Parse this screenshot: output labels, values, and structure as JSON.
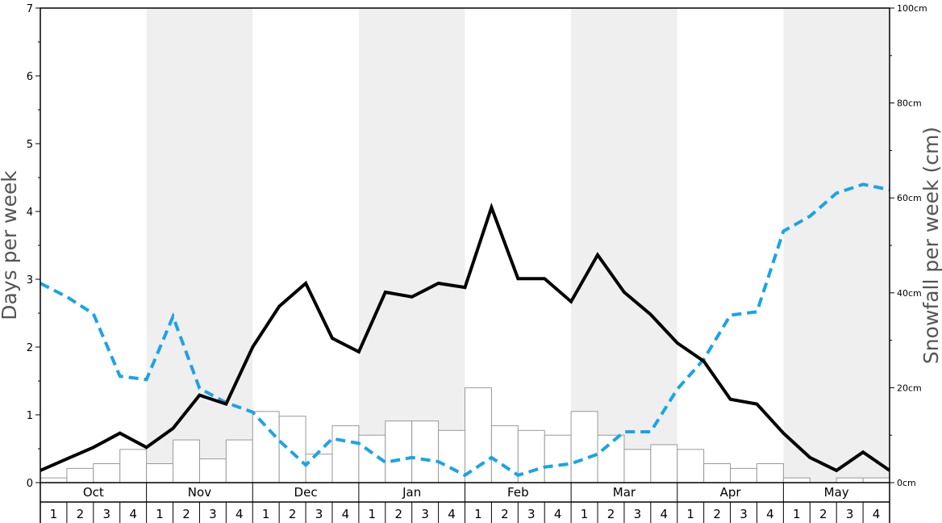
{
  "chart_data": {
    "type": "bar",
    "ylabel": "Days per week",
    "y2label": "Snowfall per week (cm)",
    "ylim": [
      0,
      7
    ],
    "y2lim": [
      0,
      100
    ],
    "y_ticks": [
      "0",
      "1",
      "2",
      "3",
      "4",
      "5",
      "6",
      "7"
    ],
    "y2_ticks": [
      "0cm",
      "20cm",
      "40cm",
      "60cm",
      "80cm",
      "100cm"
    ],
    "months": [
      "Oct",
      "Nov",
      "Dec",
      "Jan",
      "Feb",
      "Mar",
      "Apr",
      "May"
    ],
    "weeks": [
      "1",
      "2",
      "3",
      "4"
    ],
    "shaded_months": [
      "Nov",
      "Jan",
      "Mar",
      "May"
    ],
    "colors": {
      "shade": "#efefef",
      "bar_fill": "#ffffff",
      "bar_stroke": "#999999",
      "solid_line": "#000000",
      "dashed_line": "#1aa3e8"
    },
    "bar_values": [
      0.07,
      0.21,
      0.28,
      0.49,
      0.28,
      0.63,
      0.35,
      0.63,
      1.05,
      0.98,
      0.42,
      0.84,
      0.7,
      0.91,
      0.91,
      0.77,
      1.4,
      0.84,
      0.77,
      0.7,
      1.05,
      0.7,
      0.49,
      0.56,
      0.49,
      0.28,
      0.21,
      0.28,
      0.07,
      0.0,
      0.07,
      0.07
    ],
    "solid_line_values": [
      0.18,
      0.35,
      0.52,
      0.73,
      0.52,
      0.8,
      1.29,
      1.16,
      2.0,
      2.6,
      2.94,
      2.13,
      1.93,
      2.81,
      2.74,
      2.94,
      2.88,
      4.06,
      3.01,
      3.01,
      2.67,
      3.36,
      2.81,
      2.48,
      2.06,
      1.79,
      1.23,
      1.16,
      0.73,
      0.37,
      0.18,
      0.45,
      0.18
    ],
    "dashed_line_values": [
      2.94,
      2.74,
      2.49,
      1.57,
      1.52,
      2.45,
      1.39,
      1.18,
      1.04,
      0.62,
      0.26,
      0.65,
      0.58,
      0.3,
      0.37,
      0.31,
      0.11,
      0.37,
      0.11,
      0.23,
      0.28,
      0.42,
      0.75,
      0.75,
      1.38,
      1.82,
      2.47,
      2.52,
      3.71,
      3.93,
      4.27,
      4.4,
      4.32
    ]
  }
}
